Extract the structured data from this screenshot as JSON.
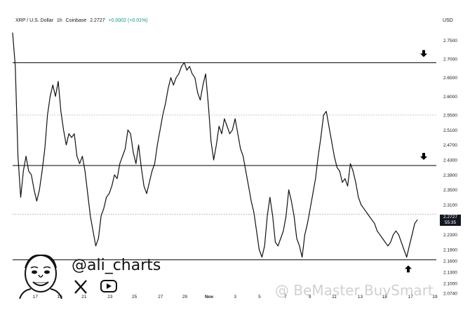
{
  "header": {
    "symbol": "XRP / U.S. Dollar",
    "interval": "1h",
    "exchange": "Coinbase",
    "last": "2.2727",
    "change": "+0.0002 (+0.01%)"
  },
  "currency": "USD",
  "price_tag": {
    "price": "2.2727",
    "countdown": "55:35"
  },
  "brand": {
    "handle": "@ali_charts",
    "x_icon": "x-logo-icon",
    "yt_icon": "youtube-icon"
  },
  "watermark": {
    "text": "@ BeMaster BuySmart"
  },
  "colors": {
    "line": "#111111",
    "level": "#000000",
    "dotted": "#9e9e9e",
    "tag_bg": "#131722"
  },
  "chart_data": {
    "type": "line",
    "title": "",
    "xlabel": "",
    "ylabel": "",
    "ylim": [
      2.07,
      2.79
    ],
    "y_ticks": [
      "2.7500",
      "2.7000",
      "2.6500",
      "2.6000",
      "2.5500",
      "2.5100",
      "2.4700",
      "2.4300",
      "2.3900",
      "2.3500",
      "2.3100",
      "2.2700",
      "2.2300",
      "2.1900",
      "2.1600",
      "2.1300",
      "2.1000",
      "2.0740"
    ],
    "y_tick_values": [
      2.75,
      2.7,
      2.65,
      2.6,
      2.55,
      2.51,
      2.47,
      2.43,
      2.39,
      2.35,
      2.31,
      2.27,
      2.23,
      2.19,
      2.16,
      2.13,
      2.1,
      2.074
    ],
    "x_ticks": [
      "17",
      "19",
      "21",
      "23",
      "25",
      "27",
      "29",
      "Nov",
      "3",
      "5",
      "7",
      "9",
      "11",
      "13",
      "15",
      "17",
      "19"
    ],
    "x_tick_index": [
      14,
      29,
      44,
      60,
      75,
      91,
      106,
      121,
      137,
      152,
      168,
      183,
      198,
      214,
      229,
      245,
      260
    ],
    "horizontal_levels": [
      2.69,
      2.415,
      2.163
    ],
    "dotted_levels": [
      2.55,
      2.285
    ],
    "arrows": [
      {
        "direction": "down",
        "level": 2.69
      },
      {
        "direction": "down",
        "level": 2.415
      },
      {
        "direction": "up",
        "level": 2.163
      }
    ],
    "series": [
      {
        "values": [
          2.77,
          2.68,
          2.44,
          2.33,
          2.4,
          2.44,
          2.4,
          2.39,
          2.35,
          2.32,
          2.35,
          2.4,
          2.46,
          2.55,
          2.6,
          2.63,
          2.6,
          2.64,
          2.56,
          2.51,
          2.47,
          2.5,
          2.49,
          2.5,
          2.44,
          2.42,
          2.44,
          2.4,
          2.34,
          2.28,
          2.24,
          2.2,
          2.22,
          2.28,
          2.3,
          2.33,
          2.34,
          2.36,
          2.39,
          2.38,
          2.42,
          2.44,
          2.46,
          2.51,
          2.5,
          2.45,
          2.42,
          2.47,
          2.41,
          2.36,
          2.34,
          2.37,
          2.4,
          2.42,
          2.47,
          2.51,
          2.55,
          2.58,
          2.62,
          2.65,
          2.63,
          2.65,
          2.66,
          2.68,
          2.69,
          2.67,
          2.68,
          2.66,
          2.65,
          2.61,
          2.59,
          2.63,
          2.66,
          2.58,
          2.48,
          2.43,
          2.47,
          2.52,
          2.5,
          2.54,
          2.52,
          2.5,
          2.51,
          2.54,
          2.5,
          2.46,
          2.44,
          2.4,
          2.36,
          2.32,
          2.29,
          2.24,
          2.19,
          2.17,
          2.2,
          2.28,
          2.33,
          2.28,
          2.21,
          2.2,
          2.22,
          2.24,
          2.28,
          2.35,
          2.32,
          2.28,
          2.22,
          2.2,
          2.17,
          2.23,
          2.26,
          2.3,
          2.34,
          2.38,
          2.44,
          2.49,
          2.55,
          2.56,
          2.52,
          2.48,
          2.44,
          2.41,
          2.4,
          2.37,
          2.38,
          2.36,
          2.42,
          2.4,
          2.37,
          2.33,
          2.31,
          2.3,
          2.29,
          2.28,
          2.27,
          2.26,
          2.24,
          2.23,
          2.22,
          2.21,
          2.2,
          2.21,
          2.23,
          2.24,
          2.23,
          2.21,
          2.19,
          2.17,
          2.2,
          2.23,
          2.26,
          2.27
        ]
      }
    ]
  }
}
